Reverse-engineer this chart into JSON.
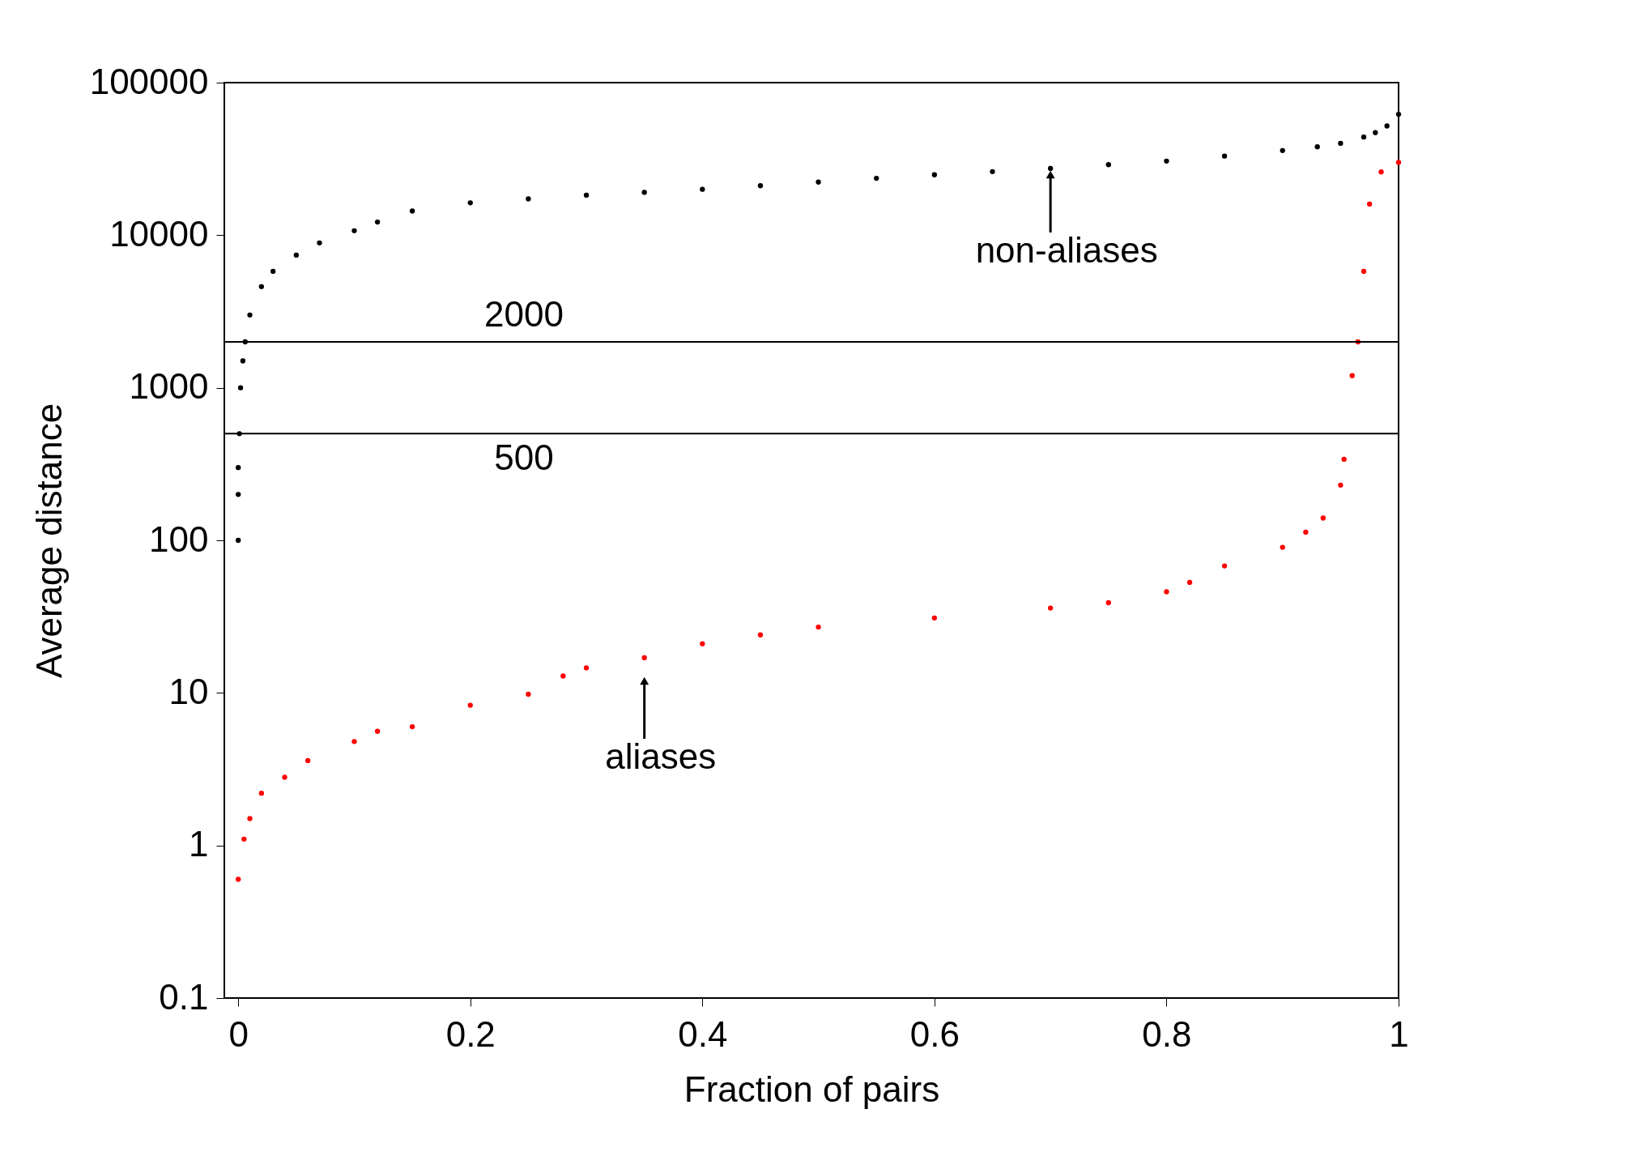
{
  "chart_data": {
    "type": "scatter",
    "xlabel": "Fraction of pairs",
    "ylabel": "Average distance",
    "log": "y",
    "marker": "circle",
    "legend": false,
    "grid": false,
    "xlim": [
      -0.012,
      1
    ],
    "xticks": [
      0,
      0.2,
      0.4,
      0.6,
      0.8,
      1
    ],
    "ylim": [
      0.1,
      100000
    ],
    "yticks": [
      0.1,
      1,
      10,
      100,
      1000,
      10000,
      100000
    ],
    "series": [
      {
        "color": "#000000",
        "x": [
          0,
          0,
          0,
          0.001,
          0.002,
          0.004,
          0.006,
          0.01,
          0.02,
          0.03,
          0.05,
          0.07,
          0.1,
          0.12,
          0.15,
          0.2,
          0.25,
          0.3,
          0.35,
          0.4,
          0.45,
          0.5,
          0.55,
          0.6,
          0.65,
          0.7,
          0.75,
          0.8,
          0.85,
          0.9,
          0.93,
          0.95,
          0.97,
          0.98,
          0.99,
          1
        ],
        "values": [
          100,
          200,
          300,
          500,
          1000,
          1500,
          2000,
          3000,
          4600,
          5800,
          7400,
          8900,
          10700,
          12200,
          14400,
          16300,
          17300,
          18300,
          19100,
          20000,
          21100,
          22300,
          23600,
          24900,
          26100,
          27400,
          29000,
          30600,
          33000,
          35900,
          38000,
          40000,
          44000,
          47000,
          52000,
          62000
        ]
      },
      {
        "color": "#ff0000",
        "x": [
          0,
          0.005,
          0.01,
          0.02,
          0.04,
          0.06,
          0.1,
          0.12,
          0.15,
          0.2,
          0.25,
          0.28,
          0.3,
          0.35,
          0.4,
          0.45,
          0.5,
          0.6,
          0.7,
          0.75,
          0.8,
          0.82,
          0.85,
          0.9,
          0.92,
          0.935,
          0.95,
          0.953,
          0.96,
          0.965,
          0.97,
          0.975,
          0.985,
          1
        ],
        "values": [
          0.6,
          1.1,
          1.5,
          2.2,
          2.8,
          3.6,
          4.8,
          5.6,
          6.0,
          8.3,
          9.8,
          12.9,
          14.6,
          17,
          21,
          24,
          27,
          31,
          36,
          39,
          46,
          53,
          68,
          90,
          113,
          140,
          230,
          340,
          1200,
          2000,
          5800,
          16000,
          26000,
          30000
        ]
      }
    ],
    "ref_lines": [
      {
        "axis": "y",
        "value": 2000,
        "label": "2000"
      },
      {
        "axis": "y",
        "value": 500,
        "label": "500"
      }
    ],
    "annotations": [
      {
        "text": "non-aliases",
        "x": 0.7,
        "y": 25000
      },
      {
        "text": "aliases",
        "x": 0.35,
        "y": 12
      }
    ]
  }
}
